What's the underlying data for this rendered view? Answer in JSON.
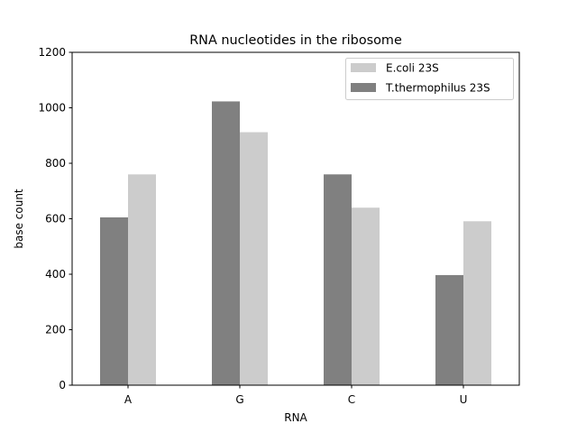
{
  "chart_data": {
    "type": "bar",
    "title": "RNA nucleotides in the ribosome",
    "xlabel": "RNA",
    "ylabel": "base count",
    "categories": [
      "A",
      "G",
      "C",
      "U"
    ],
    "ylim": [
      0,
      1200
    ],
    "yticks": [
      "0",
      "200",
      "400",
      "600",
      "800",
      "1000",
      "1200"
    ],
    "grid": false,
    "legend_position": "top-right",
    "series": [
      {
        "name": "T.thermophilus 23S",
        "values": [
          605,
          1023,
          760,
          397
        ],
        "color": "#808080"
      },
      {
        "name": "E.coli 23S",
        "values": [
          760,
          912,
          640,
          591
        ],
        "color": "#cccccc"
      }
    ],
    "legend_order": [
      1,
      0
    ]
  }
}
